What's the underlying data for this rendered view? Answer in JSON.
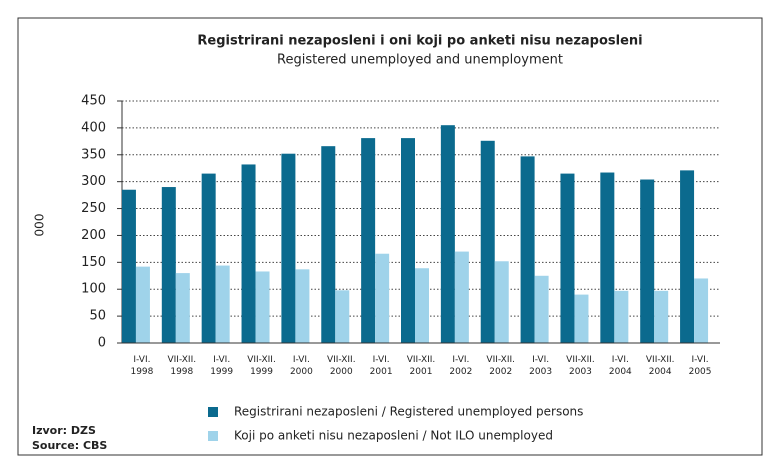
{
  "chart_data": {
    "type": "bar",
    "title": "Registrirani nezaposleni i oni koji po anketi nisu nezaposleni",
    "subtitle": "Registered unemployed and unemployment",
    "y_label": "000",
    "categories": [
      "I-VI. 1998",
      "VII-XII. 1998",
      "I-VI. 1999",
      "VII-XII. 1999",
      "I-VI. 2000",
      "VII-XII. 2000",
      "I-VI. 2001",
      "VII-XII. 2001",
      "I-VI. 2002",
      "VII-XII. 2002",
      "I-VI. 2003",
      "VII-XII. 2003",
      "I-VI. 2004",
      "VII-XII. 2004",
      "I-VI. 2005"
    ],
    "series": [
      {
        "name": "Registrirani nezaposleni / Registered unemployed persons",
        "color": "#0b6a8e",
        "values": [
          285,
          290,
          315,
          332,
          352,
          366,
          381,
          381,
          405,
          376,
          347,
          315,
          317,
          304,
          321
        ]
      },
      {
        "name": "Koji po anketi nisu nezaposleni / Not ILO unemployed",
        "color": "#9fd3ea",
        "values": [
          142,
          130,
          144,
          133,
          137,
          98,
          166,
          139,
          170,
          152,
          125,
          90,
          97,
          97,
          120
        ]
      }
    ],
    "ylim": [
      0,
      450
    ],
    "yticks": [
      0,
      50,
      100,
      150,
      200,
      250,
      300,
      350,
      400,
      450
    ],
    "grid": true,
    "source": [
      "Izvor: DZS",
      "Source: CBS"
    ]
  }
}
